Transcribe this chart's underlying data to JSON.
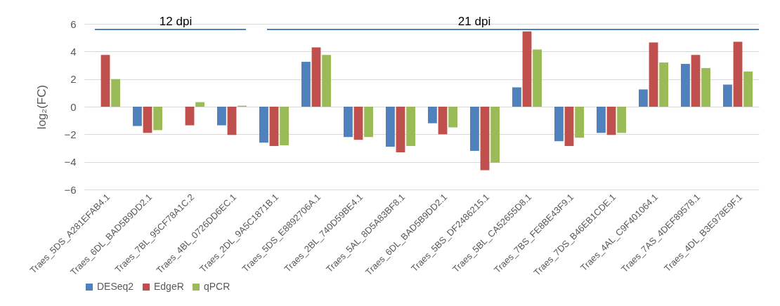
{
  "chart_data": {
    "type": "bar",
    "ylabel": "log₂(FC)",
    "categories": [
      "Traes_5DS_A281EFAB4.1",
      "Traes_6DL_BAD5B9DD2.1",
      "Traes_7BL_95CF78A1C.2",
      "Traes_4BL_0726DD6EC.1",
      "Traes_2DL_9A5C1871B.1",
      "Traes_5DS_E8892706A.1",
      "Traes_2BL_740D59BE4.1",
      "Traes_5AL_8D5A83BF8.1",
      "Traes_6DL_BAD5B9DD2.1",
      "Traes_5BS_DF2486215.1",
      "Traes_5BL_CA52655D8.1",
      "Traes_7BS_FE8BE43F9.1",
      "Traes_7DS_B46EB1CDE.1",
      "Traes_4AL_C9F401064.1",
      "Traes_7AS_4DEF89578.1",
      "Traes_4DL_B3E978E9F.1"
    ],
    "series": [
      {
        "name": "DESeq2",
        "color": "#4f81bd",
        "values": [
          null,
          -1.4,
          null,
          -1.35,
          -2.6,
          3.25,
          -2.2,
          -2.9,
          -1.2,
          -3.2,
          1.4,
          -2.5,
          -1.9,
          1.25,
          3.1,
          1.6
        ]
      },
      {
        "name": "EdgeR",
        "color": "#c0504d",
        "values": [
          3.75,
          -1.9,
          -1.35,
          -2.05,
          -2.85,
          4.3,
          -2.4,
          -3.3,
          -2.0,
          -4.6,
          5.45,
          -2.85,
          -2.05,
          4.65,
          3.75,
          4.7
        ]
      },
      {
        "name": "qPCR",
        "color": "#9bbb59",
        "values": [
          2.0,
          -1.7,
          0.33,
          0.07,
          -2.8,
          3.75,
          -2.2,
          -2.85,
          -1.5,
          -4.05,
          4.15,
          -2.25,
          -1.9,
          3.2,
          2.8,
          2.55
        ]
      }
    ],
    "ylim": [
      -6,
      6
    ],
    "yticks": [
      -6,
      -4,
      -2,
      0,
      2,
      4,
      6
    ],
    "grid": "y",
    "legend": "bottom",
    "annotations": [
      "12 dpi",
      "21 dpi"
    ]
  }
}
